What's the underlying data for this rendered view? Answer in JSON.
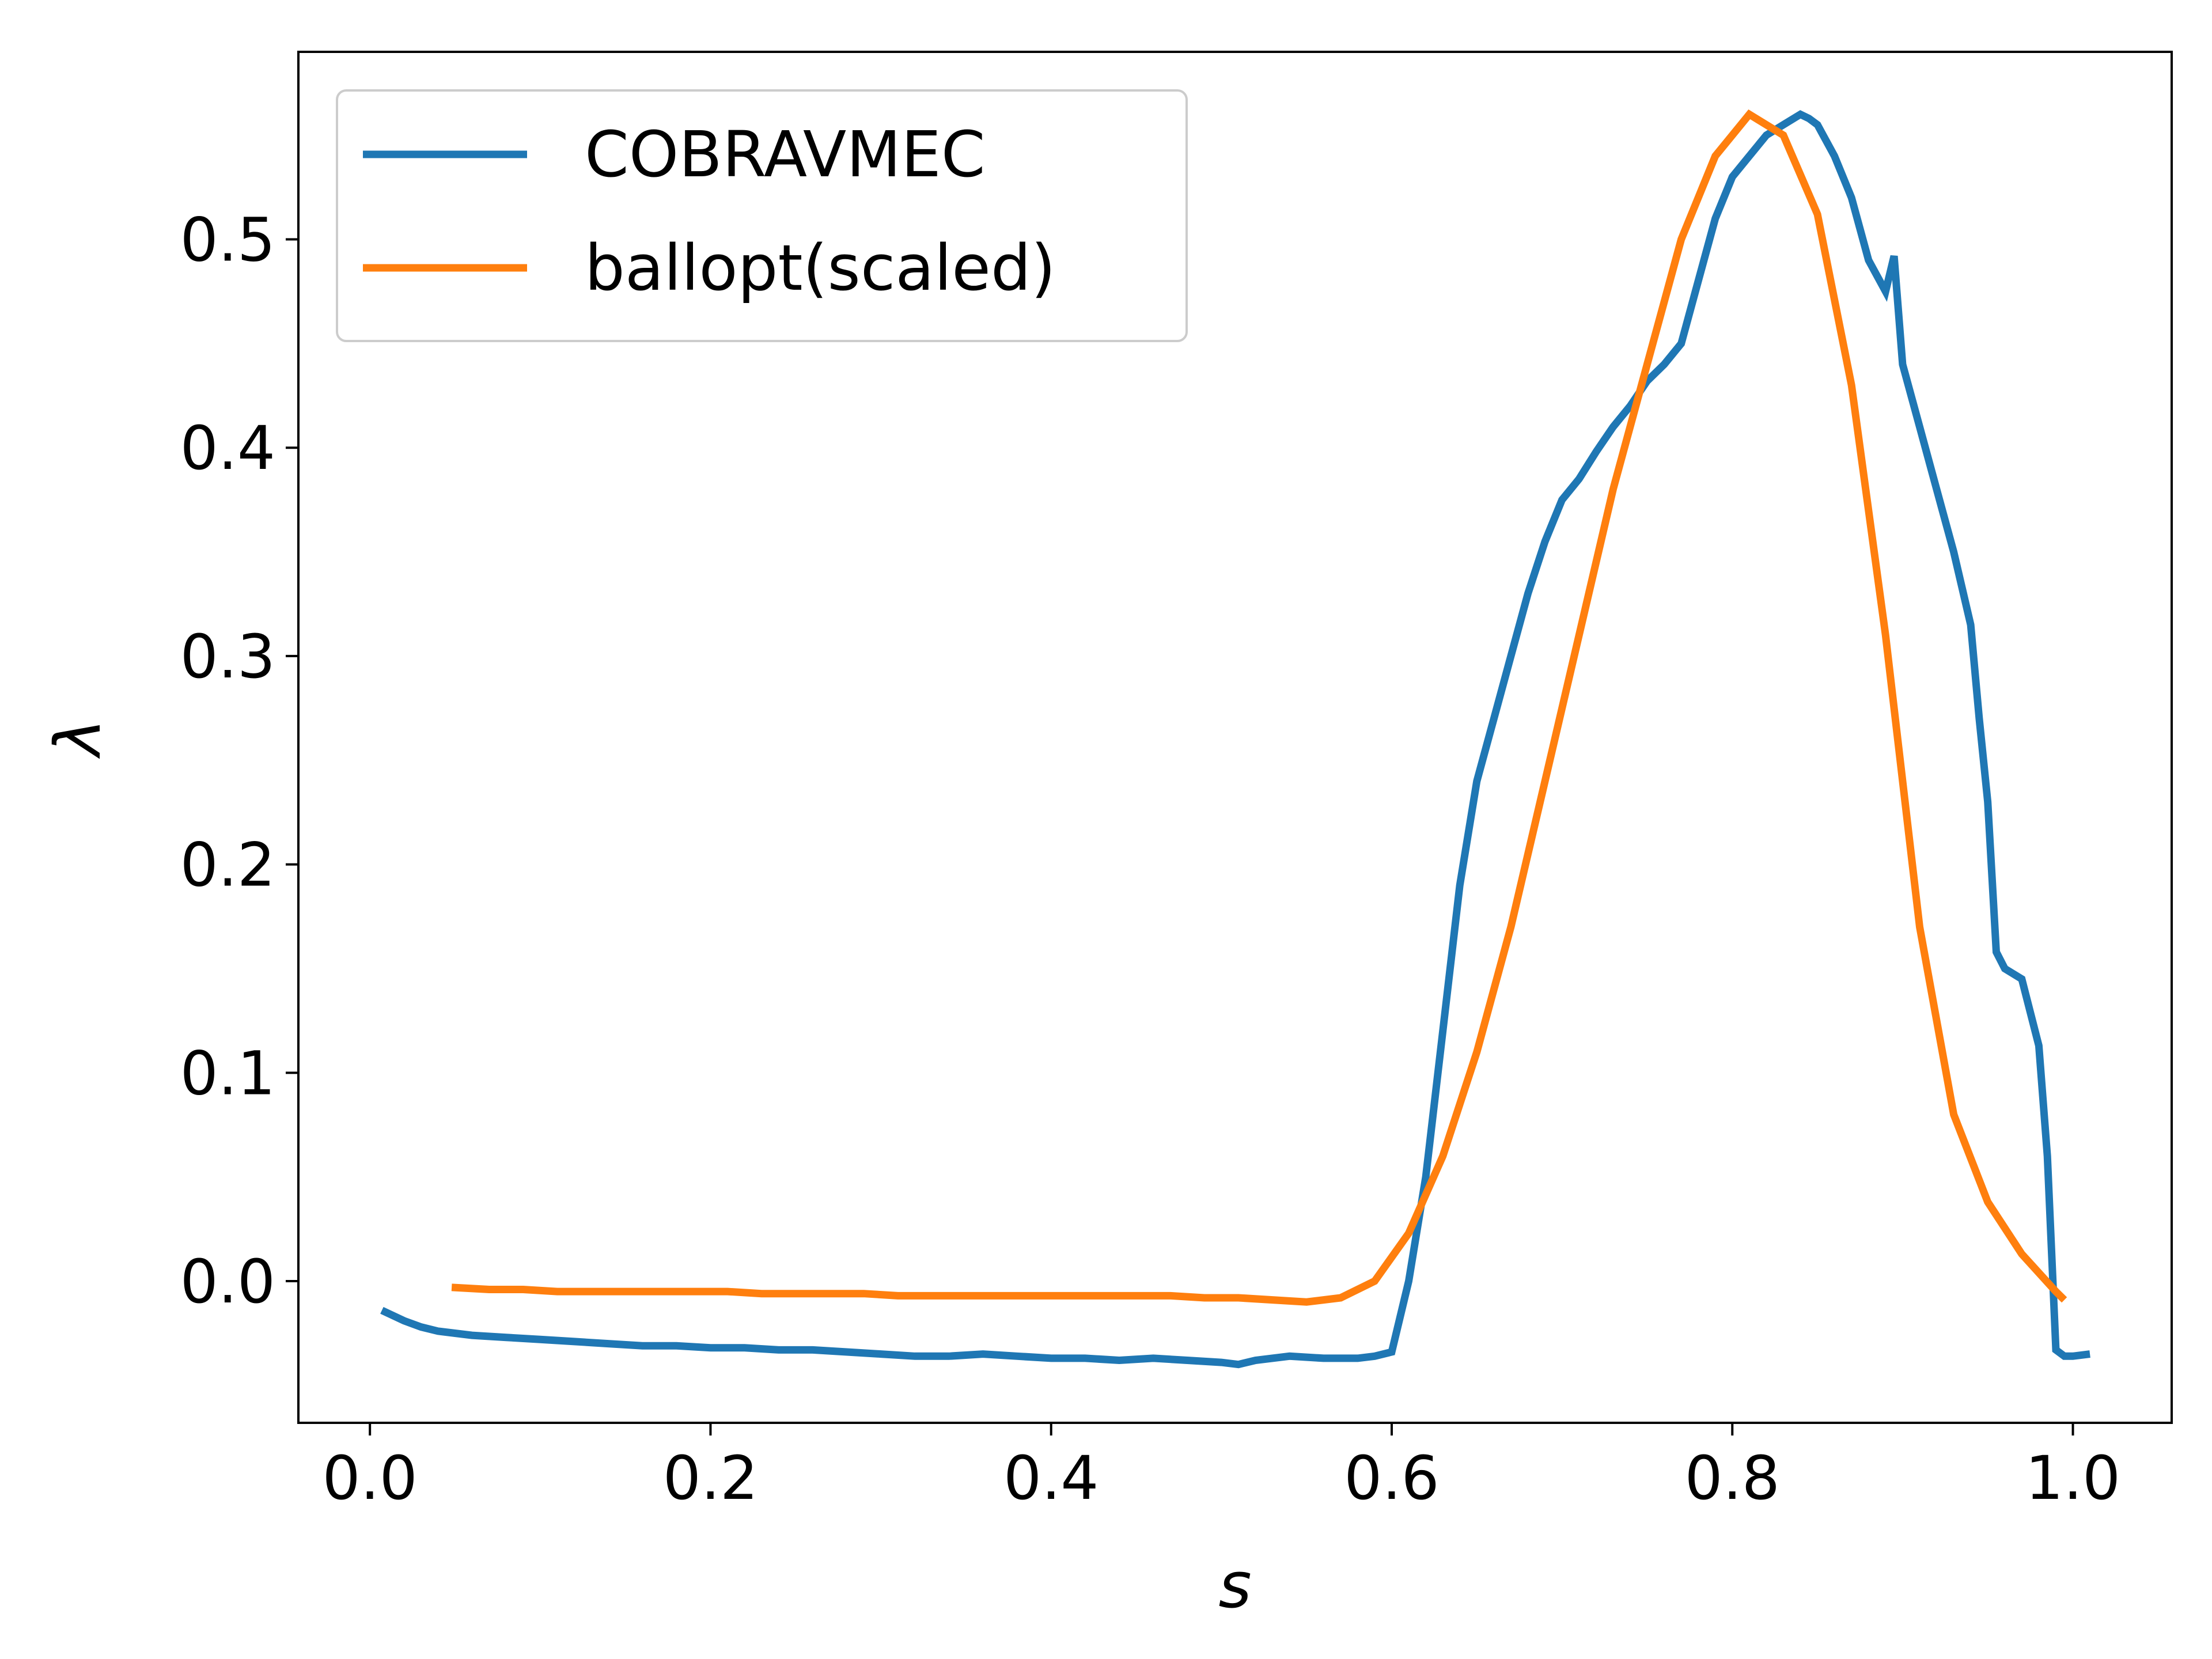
{
  "chart_data": {
    "type": "line",
    "title": "",
    "xlabel": "s",
    "ylabel": "λ",
    "xlim": [
      -0.042,
      1.058
    ],
    "ylim": [
      -0.068,
      0.59
    ],
    "xticks": [
      0.0,
      0.2,
      0.4,
      0.6,
      0.8,
      1.0
    ],
    "xtick_labels": [
      "0.0",
      "0.2",
      "0.4",
      "0.6",
      "0.8",
      "1.0"
    ],
    "yticks": [
      0.0,
      0.1,
      0.2,
      0.3,
      0.4,
      0.5
    ],
    "ytick_labels": [
      "0.0",
      "0.1",
      "0.2",
      "0.3",
      "0.4",
      "0.5"
    ],
    "grid": false,
    "legend": "top-left",
    "series": [
      {
        "name": "COBRAVMEC",
        "color": "#1f77b4",
        "x": [
          0.007,
          0.02,
          0.03,
          0.04,
          0.05,
          0.06,
          0.08,
          0.1,
          0.12,
          0.14,
          0.16,
          0.18,
          0.2,
          0.22,
          0.24,
          0.26,
          0.28,
          0.3,
          0.32,
          0.34,
          0.36,
          0.38,
          0.4,
          0.42,
          0.44,
          0.46,
          0.48,
          0.5,
          0.51,
          0.52,
          0.54,
          0.56,
          0.58,
          0.59,
          0.6,
          0.61,
          0.62,
          0.63,
          0.64,
          0.65,
          0.66,
          0.67,
          0.68,
          0.69,
          0.7,
          0.71,
          0.72,
          0.73,
          0.74,
          0.75,
          0.76,
          0.77,
          0.78,
          0.79,
          0.8,
          0.81,
          0.82,
          0.83,
          0.84,
          0.845,
          0.85,
          0.86,
          0.87,
          0.88,
          0.89,
          0.895,
          0.9,
          0.91,
          0.92,
          0.93,
          0.94,
          0.945,
          0.95,
          0.955,
          0.96,
          0.97,
          0.98,
          0.985,
          0.99,
          0.995,
          1.0,
          1.01
        ],
        "y": [
          -0.014,
          -0.019,
          -0.022,
          -0.024,
          -0.025,
          -0.026,
          -0.027,
          -0.028,
          -0.029,
          -0.03,
          -0.031,
          -0.031,
          -0.032,
          -0.032,
          -0.033,
          -0.033,
          -0.034,
          -0.035,
          -0.036,
          -0.036,
          -0.035,
          -0.036,
          -0.037,
          -0.037,
          -0.038,
          -0.037,
          -0.038,
          -0.039,
          -0.04,
          -0.038,
          -0.036,
          -0.037,
          -0.037,
          -0.036,
          -0.034,
          0.0,
          0.05,
          0.12,
          0.19,
          0.24,
          0.27,
          0.3,
          0.33,
          0.355,
          0.375,
          0.385,
          0.398,
          0.41,
          0.42,
          0.432,
          0.44,
          0.45,
          0.48,
          0.51,
          0.53,
          0.54,
          0.55,
          0.555,
          0.56,
          0.558,
          0.555,
          0.54,
          0.52,
          0.49,
          0.475,
          0.492,
          0.44,
          0.41,
          0.38,
          0.35,
          0.315,
          0.27,
          0.23,
          0.158,
          0.15,
          0.145,
          0.113,
          0.06,
          -0.033,
          -0.036,
          -0.036,
          -0.035
        ]
      },
      {
        "name": "ballopt(scaled)",
        "color": "#ff7f0e",
        "x": [
          0.048,
          0.07,
          0.09,
          0.11,
          0.13,
          0.15,
          0.17,
          0.19,
          0.21,
          0.23,
          0.25,
          0.27,
          0.29,
          0.31,
          0.33,
          0.35,
          0.37,
          0.39,
          0.41,
          0.43,
          0.45,
          0.47,
          0.49,
          0.51,
          0.53,
          0.55,
          0.57,
          0.59,
          0.61,
          0.63,
          0.65,
          0.67,
          0.69,
          0.71,
          0.73,
          0.75,
          0.77,
          0.79,
          0.81,
          0.83,
          0.85,
          0.87,
          0.89,
          0.91,
          0.93,
          0.95,
          0.97,
          0.99,
          0.995
        ],
        "y": [
          -0.003,
          -0.004,
          -0.004,
          -0.005,
          -0.005,
          -0.005,
          -0.005,
          -0.005,
          -0.005,
          -0.006,
          -0.006,
          -0.006,
          -0.006,
          -0.007,
          -0.007,
          -0.007,
          -0.007,
          -0.007,
          -0.007,
          -0.007,
          -0.007,
          -0.007,
          -0.008,
          -0.008,
          -0.009,
          -0.01,
          -0.008,
          0.0,
          0.023,
          0.06,
          0.11,
          0.17,
          0.24,
          0.31,
          0.38,
          0.44,
          0.5,
          0.54,
          0.56,
          0.55,
          0.512,
          0.43,
          0.31,
          0.17,
          0.08,
          0.038,
          0.013,
          -0.005,
          -0.009
        ]
      }
    ]
  }
}
